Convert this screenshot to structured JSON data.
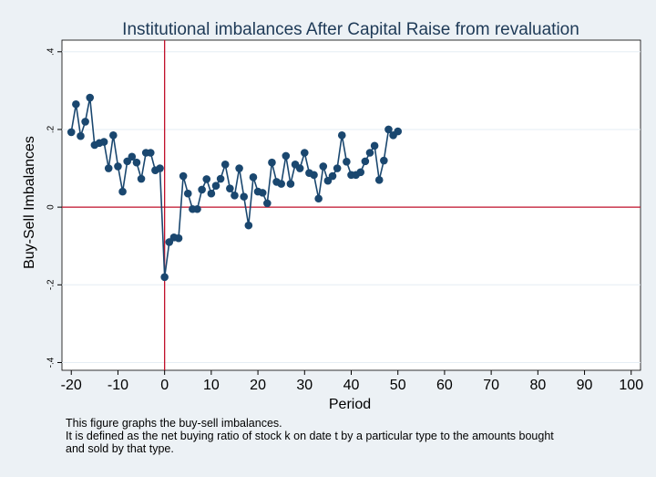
{
  "chart_data": {
    "type": "line",
    "title": "Institutional imbalances After Capital  Raise from revaluation",
    "xlabel": "Period",
    "ylabel": "Buy-Sell Imbalances",
    "xlim": [
      -22,
      102
    ],
    "ylim": [
      -0.42,
      0.43
    ],
    "xticks": [
      -20,
      -10,
      0,
      10,
      20,
      30,
      40,
      50,
      60,
      70,
      80,
      90,
      100
    ],
    "xtick_labels": [
      "-20",
      "-10",
      "0",
      "10",
      "20",
      "30",
      "40",
      "50",
      "60",
      "70",
      "80",
      "90",
      "100"
    ],
    "yticks": [
      -0.4,
      -0.2,
      0,
      0.2,
      0.4
    ],
    "ytick_labels": [
      "-.4",
      "-.2",
      "0",
      ".2",
      ".4"
    ],
    "grid": "horizontal",
    "reference_lines": {
      "x": 0,
      "y": 0,
      "color": "#c0102a"
    },
    "series": [
      {
        "color": "#1a476f",
        "marker": "circle",
        "x": [
          -20,
          -19,
          -18,
          -17,
          -16,
          -15,
          -14,
          -13,
          -12,
          -11,
          -10,
          -9,
          -8,
          -7,
          -6,
          -5,
          -4,
          -3,
          -2,
          -1,
          0,
          1,
          2,
          3,
          4,
          5,
          6,
          7,
          8,
          9,
          10,
          11,
          12,
          13,
          14,
          15,
          16,
          17,
          18,
          19,
          20,
          21,
          22,
          23,
          24,
          25,
          26,
          27,
          28,
          29,
          30,
          31,
          32,
          33,
          34,
          35,
          36,
          37,
          38,
          39,
          40,
          41,
          42,
          43,
          44,
          45,
          46,
          47,
          48,
          49,
          50
        ],
        "y": [
          0.193,
          0.265,
          0.183,
          0.22,
          0.282,
          0.16,
          0.165,
          0.168,
          0.1,
          0.185,
          0.105,
          0.04,
          0.118,
          0.13,
          0.115,
          0.073,
          0.14,
          0.14,
          0.095,
          0.1,
          -0.18,
          -0.09,
          -0.078,
          -0.08,
          0.08,
          0.035,
          -0.005,
          -0.005,
          0.045,
          0.072,
          0.035,
          0.055,
          0.073,
          0.11,
          0.048,
          0.03,
          0.1,
          0.027,
          -0.047,
          0.077,
          0.04,
          0.037,
          0.01,
          0.115,
          0.065,
          0.06,
          0.132,
          0.06,
          0.11,
          0.1,
          0.14,
          0.088,
          0.083,
          0.022,
          0.105,
          0.068,
          0.08,
          0.1,
          0.185,
          0.117,
          0.083,
          0.083,
          0.09,
          0.118,
          0.14,
          0.158,
          0.07,
          0.12,
          0.2,
          0.185,
          0.195
        ]
      }
    ]
  },
  "caption": {
    "lines": [
      "This figure graphs the buy-sell imbalances.",
      "It is defined as the net buying ratio of stock k on date t by a particular type to the amounts bought",
      "and sold by that type."
    ]
  }
}
